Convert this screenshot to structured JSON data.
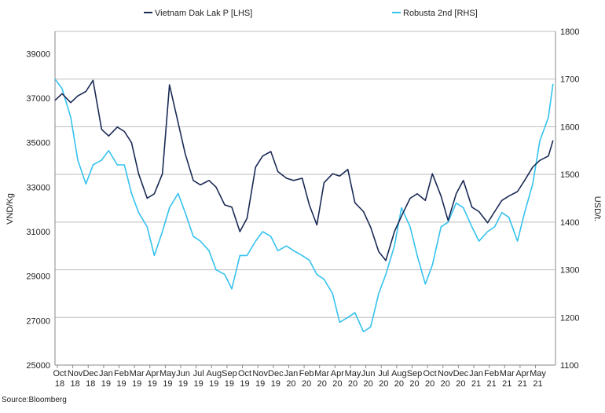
{
  "source_label": "Source:Bloomberg",
  "chart_data": {
    "type": "line",
    "title": "",
    "ylabel_left": "VND/Kg",
    "ylabel_right": "USD/t.",
    "ylim_left": [
      25000,
      40000
    ],
    "yticks_left": [
      25000,
      27000,
      29000,
      31000,
      33000,
      35000,
      37000,
      39000
    ],
    "ylim_right": [
      1100,
      1800
    ],
    "yticks_right": [
      1100,
      1200,
      1300,
      1400,
      1500,
      1600,
      1700,
      1800
    ],
    "x_tick_labels": [
      [
        "Oct",
        "18"
      ],
      [
        "Nov",
        "18"
      ],
      [
        "Dec",
        "18"
      ],
      [
        "Jan",
        "19"
      ],
      [
        "Feb",
        "19"
      ],
      [
        "Mar",
        "19"
      ],
      [
        "Apr",
        "19"
      ],
      [
        "May",
        "19"
      ],
      [
        "Jun",
        "19"
      ],
      [
        "Jul",
        "19"
      ],
      [
        "Aug",
        "19"
      ],
      [
        "Sep",
        "19"
      ],
      [
        "Oct",
        "19"
      ],
      [
        "Nov",
        "19"
      ],
      [
        "Dec",
        "19"
      ],
      [
        "Jan",
        "20"
      ],
      [
        "Feb",
        "20"
      ],
      [
        "Mar",
        "20"
      ],
      [
        "Apr",
        "20"
      ],
      [
        "May",
        "20"
      ],
      [
        "Jun",
        "20"
      ],
      [
        "Jul",
        "20"
      ],
      [
        "Aug",
        "20"
      ],
      [
        "Sep",
        "20"
      ],
      [
        "Oct",
        "20"
      ],
      [
        "Nov",
        "20"
      ],
      [
        "Dec",
        "20"
      ],
      [
        "Jan",
        "21"
      ],
      [
        "Feb",
        "21"
      ],
      [
        "Mar",
        "21"
      ],
      [
        "Apr",
        "21"
      ],
      [
        "May",
        "21"
      ]
    ],
    "grid": "horizontal",
    "legend_position": "top-center",
    "x": [
      "2018-10-01",
      "2018-10-15",
      "2018-11-01",
      "2018-11-15",
      "2018-12-01",
      "2018-12-15",
      "2019-01-01",
      "2019-01-15",
      "2019-02-01",
      "2019-02-15",
      "2019-03-01",
      "2019-03-15",
      "2019-04-01",
      "2019-04-15",
      "2019-05-01",
      "2019-05-15",
      "2019-06-01",
      "2019-06-15",
      "2019-07-01",
      "2019-07-15",
      "2019-08-01",
      "2019-08-15",
      "2019-09-01",
      "2019-09-15",
      "2019-10-01",
      "2019-10-15",
      "2019-11-01",
      "2019-11-15",
      "2019-12-01",
      "2019-12-15",
      "2020-01-01",
      "2020-01-15",
      "2020-02-01",
      "2020-02-15",
      "2020-03-01",
      "2020-03-15",
      "2020-04-01",
      "2020-04-15",
      "2020-05-01",
      "2020-05-15",
      "2020-06-01",
      "2020-06-15",
      "2020-07-01",
      "2020-07-15",
      "2020-08-01",
      "2020-08-15",
      "2020-09-01",
      "2020-09-15",
      "2020-10-01",
      "2020-10-15",
      "2020-11-01",
      "2020-11-15",
      "2020-12-01",
      "2020-12-15",
      "2021-01-01",
      "2021-01-15",
      "2021-02-01",
      "2021-02-15",
      "2021-03-01",
      "2021-03-15",
      "2021-04-01",
      "2021-04-15",
      "2021-05-01",
      "2021-05-15",
      "2021-06-01",
      "2021-06-10"
    ],
    "series": [
      {
        "name": "Vietnam Dak Lak P [LHS]",
        "axis": "left",
        "color": "#1a2a55",
        "values": [
          36900,
          37200,
          36800,
          37100,
          37300,
          37800,
          35600,
          35300,
          35700,
          35500,
          35000,
          33600,
          32500,
          32700,
          33600,
          37600,
          35900,
          34500,
          33300,
          33100,
          33300,
          33000,
          32200,
          32100,
          31000,
          31600,
          33900,
          34400,
          34600,
          33700,
          33400,
          33300,
          33400,
          32200,
          31300,
          33200,
          33600,
          33500,
          33800,
          32300,
          31900,
          31200,
          30100,
          29700,
          31000,
          31700,
          32500,
          32700,
          32400,
          33600,
          32600,
          31500,
          32700,
          33300,
          32100,
          31900,
          31400,
          31900,
          32400,
          32600,
          32800,
          33300,
          33900,
          34200,
          34400,
          35100
        ]
      },
      {
        "name": "Robusta 2nd [RHS]",
        "axis": "left_scaled_right",
        "axis_side": "right",
        "color": "#35c2ef",
        "values": [
          1700,
          1680,
          1620,
          1530,
          1480,
          1520,
          1530,
          1550,
          1520,
          1520,
          1460,
          1420,
          1390,
          1330,
          1380,
          1430,
          1460,
          1420,
          1370,
          1360,
          1340,
          1300,
          1290,
          1260,
          1330,
          1330,
          1360,
          1380,
          1370,
          1340,
          1350,
          1340,
          1330,
          1320,
          1290,
          1280,
          1250,
          1190,
          1200,
          1210,
          1170,
          1180,
          1250,
          1290,
          1350,
          1430,
          1390,
          1330,
          1270,
          1310,
          1390,
          1400,
          1440,
          1430,
          1390,
          1360,
          1380,
          1390,
          1420,
          1410,
          1360,
          1420,
          1480,
          1570,
          1620,
          1690
        ]
      }
    ]
  }
}
